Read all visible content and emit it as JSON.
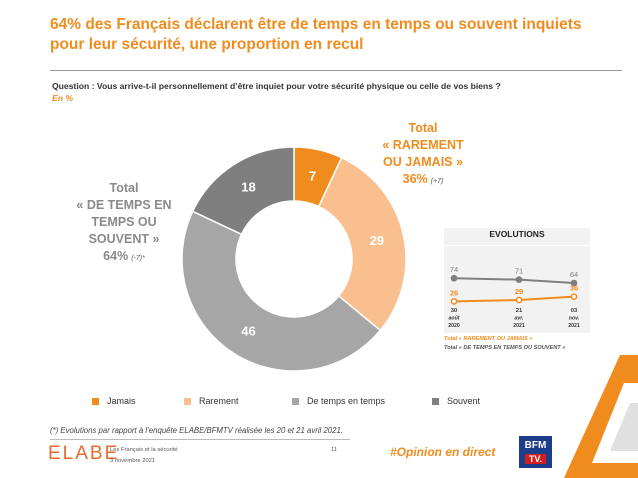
{
  "title": "64% des Français déclarent être de temps en temps ou souvent inquiets pour leur sécurité, une proportion en recul",
  "question": "Question : Vous arrive-t-il personnellement d’être inquiet pour votre sécurité physique ou celle de vos biens ?",
  "unit": "En %",
  "callout_left": {
    "l1": "Total",
    "l2": "« DE TEMPS EN",
    "l3": "TEMPS OU",
    "l4": "SOUVENT »",
    "value": "64%",
    "delta": "(-7)*"
  },
  "callout_right": {
    "l1": "Total",
    "l2": "« RAREMENT",
    "l3": "OU JAMAIS »",
    "value": "36%",
    "delta": "(+7)"
  },
  "chart_data": [
    {
      "type": "pie",
      "variant": "donut",
      "categories": [
        "Jamais",
        "Rarement",
        "De temps en temps",
        "Souvent"
      ],
      "values": [
        7,
        29,
        46,
        18
      ],
      "colors": [
        "#f08c1e",
        "#f9bf8e",
        "#a6a6a6",
        "#7f7f7f"
      ],
      "label_colors": [
        "#ffffff",
        "#ffffff",
        "#ffffff",
        "#ffffff"
      ],
      "legend": "bottom"
    },
    {
      "type": "line",
      "title": "EVOLUTIONS",
      "x": [
        {
          "day": "30",
          "month": "août",
          "year": "2020"
        },
        {
          "day": "21",
          "month": "avr.",
          "year": "2021"
        },
        {
          "day": "03",
          "month": "nov.",
          "year": "2021"
        }
      ],
      "series": [
        {
          "name": "Total « DE TEMPS EN TEMPS OU SOUVENT »",
          "values": [
            74,
            71,
            64
          ],
          "color": "#7f7f7f"
        },
        {
          "name": "Total « RAREMENT OU JAMAIS »",
          "values": [
            26,
            29,
            36
          ],
          "color": "#f08c1e"
        }
      ],
      "ylim": [
        0,
        100
      ]
    }
  ],
  "legend": [
    "Jamais",
    "Rarement",
    "De temps en temps",
    "Souvent"
  ],
  "footnote": "(*) Evolutions par rapport à l’enquête ELABE/BFMTV réalisée les 20 et 21 avril 2021.",
  "footer": {
    "logo": "ELABE",
    "subject": "Les Français et la sécurité",
    "date": "3 novembre 2021",
    "page": "11",
    "hashtag": "#Opinion en direct",
    "brand_top": "BFM",
    "brand_bottom": "TV."
  }
}
